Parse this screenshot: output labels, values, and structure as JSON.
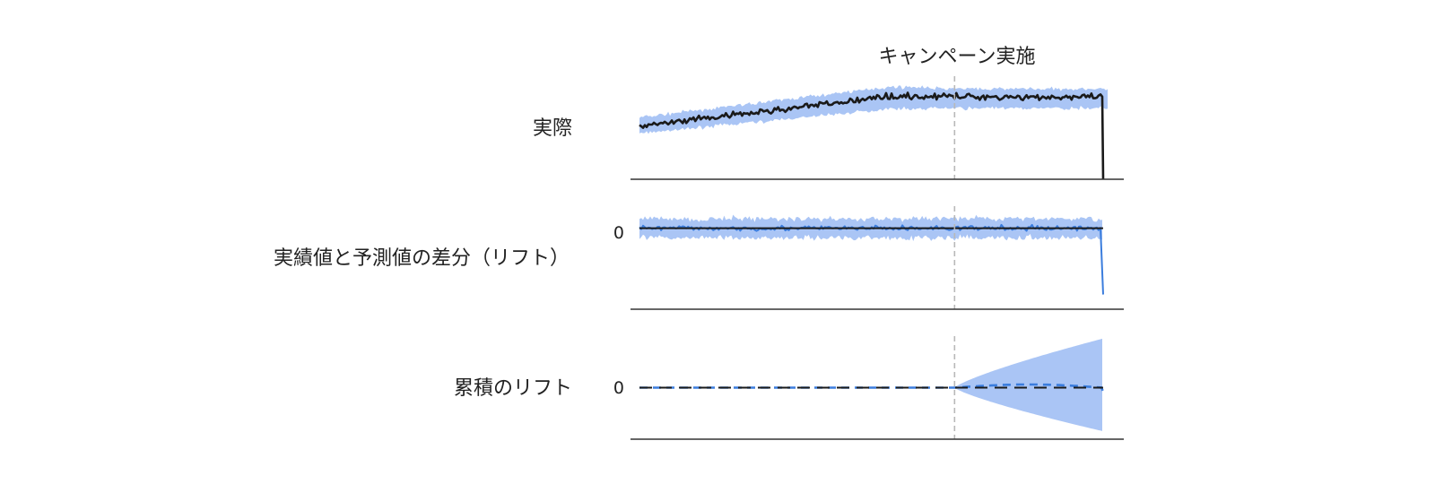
{
  "chart_data": {
    "type": "line",
    "annotation": "キャンペーン実施",
    "colors": {
      "band": "#aac5f5",
      "actual_line": "#1a1a1a",
      "predicted_line": "#3b7ddd",
      "baseline": "#1a1a1a",
      "marker_line": "#b8b8b8",
      "axis": "#333333"
    },
    "panels": [
      {
        "label": "実際",
        "zero_label": "",
        "series": [
          {
            "role": "band",
            "start": [
              0,
              0.8,
              1.08
            ],
            "mid": [
              280,
              1.23,
              1.62
            ],
            "marker": [
              350,
              1.24,
              1.58
            ],
            "end": [
              520,
              1.24,
              1.58
            ],
            "noise": 0.05
          },
          {
            "role": "actual",
            "start": [
              0,
              0.92
            ],
            "mid": [
              280,
              1.45
            ],
            "end": [
              515,
              1.43
            ],
            "drop": [
              515,
              0
            ],
            "noise": 0.08
          }
        ],
        "ylim": [
          0,
          1.8
        ]
      },
      {
        "label": "実績値と予測値の差分（リフト）",
        "zero_label": "0",
        "series": [
          {
            "role": "band",
            "lower": -0.13,
            "upper": 0.13,
            "noise": 0.06
          },
          {
            "role": "predicted",
            "value": 0,
            "noise": 0.05,
            "drop": [
              515,
              -0.9
            ],
            "dashed": true
          },
          {
            "role": "baseline",
            "value": 0
          }
        ],
        "ylim": [
          -1.1,
          0.3
        ]
      },
      {
        "label": "累積のリフト",
        "zero_label": "0",
        "series": [
          {
            "role": "band",
            "start_x": 350,
            "end_x": 515,
            "end_lower": -0.55,
            "end_upper": 0.62
          },
          {
            "role": "predicted",
            "value": 0,
            "bump": 0.04,
            "dashed": true
          },
          {
            "role": "baseline",
            "value": 0
          }
        ],
        "ylim": [
          -0.65,
          0.65
        ]
      }
    ],
    "x_range": [
      0,
      525
    ],
    "intervention_x": 350
  }
}
